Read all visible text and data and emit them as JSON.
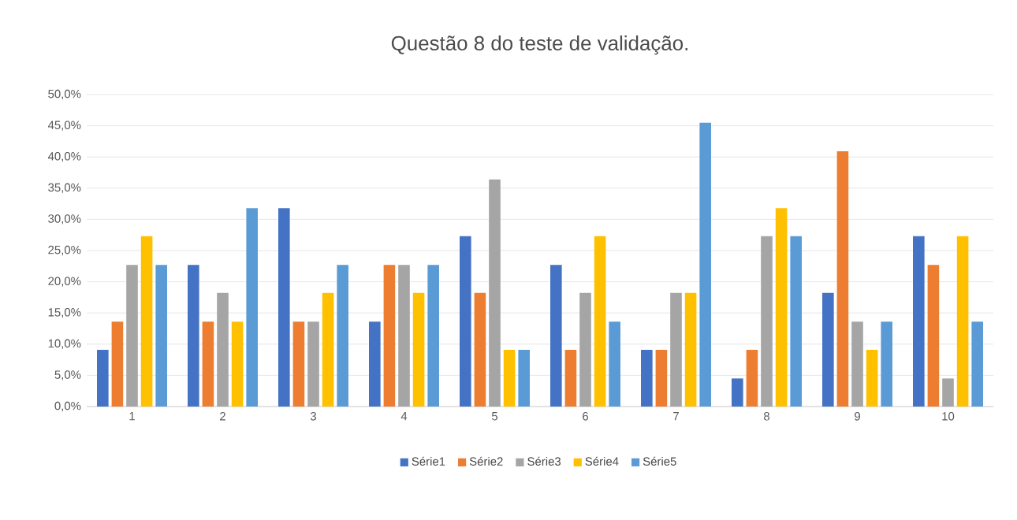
{
  "chart_data": {
    "type": "bar",
    "title": "Questão 8 do teste de validação.",
    "categories": [
      "1",
      "2",
      "3",
      "4",
      "5",
      "6",
      "7",
      "8",
      "9",
      "10"
    ],
    "series": [
      {
        "name": "Série1",
        "color": "#4472c4",
        "values": [
          9.1,
          22.7,
          31.8,
          13.6,
          27.3,
          22.7,
          9.1,
          4.5,
          18.2,
          27.3
        ]
      },
      {
        "name": "Série2",
        "color": "#ed7d31",
        "values": [
          13.6,
          13.6,
          13.6,
          22.7,
          18.2,
          9.1,
          9.1,
          9.1,
          40.9,
          22.7
        ]
      },
      {
        "name": "Série3",
        "color": "#a5a5a5",
        "values": [
          22.7,
          18.2,
          13.6,
          22.7,
          36.4,
          18.2,
          18.2,
          27.3,
          13.6,
          4.5
        ]
      },
      {
        "name": "Série4",
        "color": "#ffc000",
        "values": [
          27.3,
          13.6,
          18.2,
          18.2,
          9.1,
          27.3,
          18.2,
          31.8,
          9.1,
          27.3
        ]
      },
      {
        "name": "Série5",
        "color": "#5b9bd5",
        "values": [
          22.7,
          31.8,
          22.7,
          22.7,
          9.1,
          13.6,
          45.5,
          27.3,
          13.6,
          13.6
        ]
      }
    ],
    "ylim": [
      0,
      50
    ],
    "yticks": [
      {
        "value": 0,
        "label": "0,0%"
      },
      {
        "value": 5,
        "label": "5,0%"
      },
      {
        "value": 10,
        "label": "10,0%"
      },
      {
        "value": 15,
        "label": "15,0%"
      },
      {
        "value": 20,
        "label": "20,0%"
      },
      {
        "value": 25,
        "label": "25,0%"
      },
      {
        "value": 30,
        "label": "30,0%"
      },
      {
        "value": 35,
        "label": "35,0%"
      },
      {
        "value": 40,
        "label": "40,0%"
      },
      {
        "value": 45,
        "label": "45,0%"
      },
      {
        "value": 50,
        "label": "50,0%"
      }
    ],
    "grid": "y",
    "legend": "bottom"
  }
}
